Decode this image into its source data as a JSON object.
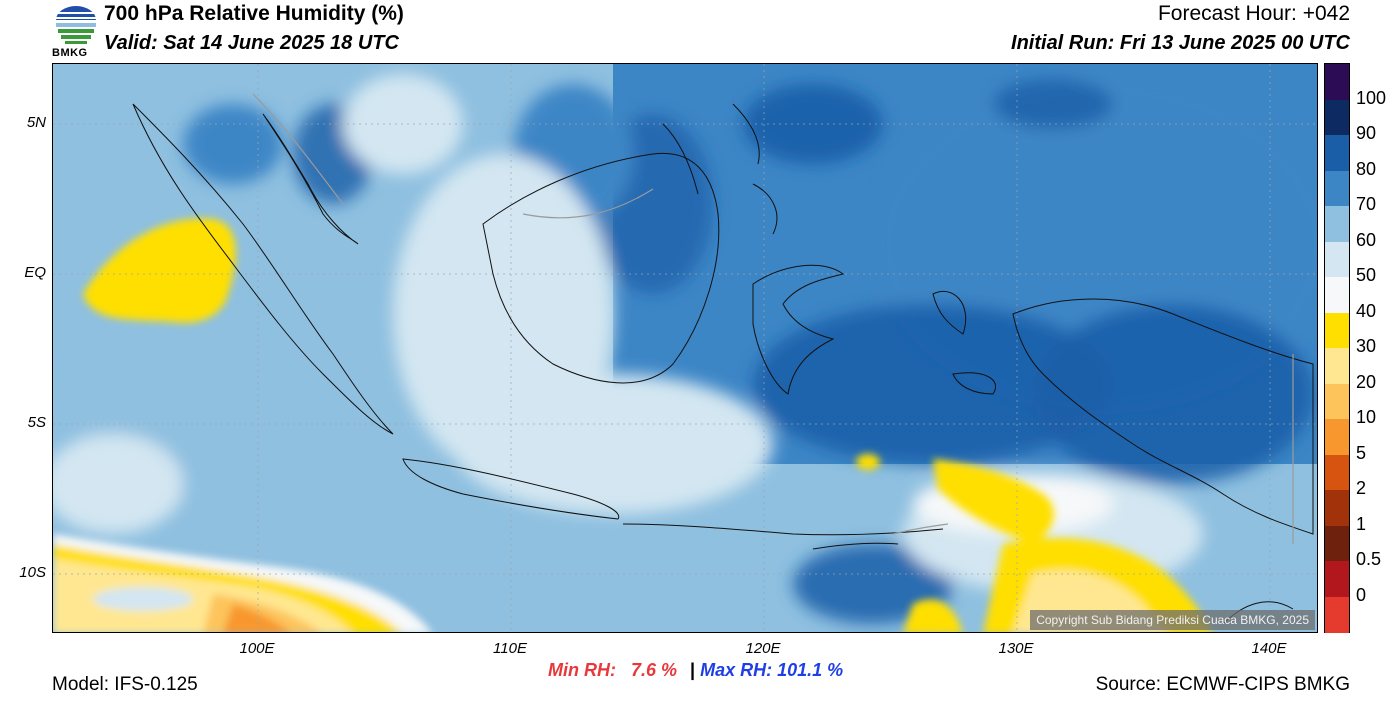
{
  "header": {
    "title": "700 hPa Relative Humidity (%)",
    "valid": "Valid: Sat 14 June 2025 18 UTC",
    "forecast_hour": "Forecast Hour: +042",
    "initial_run": "Initial Run: Fri 13 June 2025 00 UTC"
  },
  "logo": {
    "text": "BMKG",
    "icon": "bmkg-logo"
  },
  "map": {
    "lat_labels": [
      "5N",
      "EQ",
      "5S",
      "10S"
    ],
    "lon_labels": [
      "100E",
      "110E",
      "120E",
      "130E",
      "140E"
    ],
    "copyright": "Copyright Sub Bidang Prediksi Cuaca BMKG, 2025"
  },
  "colorbar": {
    "labels": [
      "100",
      "90",
      "80",
      "70",
      "60",
      "50",
      "40",
      "30",
      "20",
      "10",
      "5",
      "2",
      "1",
      "0.5",
      "0"
    ],
    "colors": [
      "#2b0c55",
      "#0d2a63",
      "#1a5ea8",
      "#3d86c6",
      "#8fc0e0",
      "#d3e6f1",
      "#f6f8f9",
      "#ffdf00",
      "#ffe791",
      "#fdc45c",
      "#f8972e",
      "#d65410",
      "#a23209",
      "#6e220d",
      "#b2171d",
      "#e53b2f"
    ]
  },
  "footer": {
    "model": "Model: IFS-0.125",
    "min_rh_label": "Min RH:",
    "min_rh_value": "7.6 %",
    "separator": "|",
    "max_rh_label": "Max RH:",
    "max_rh_value": "101.1 %",
    "source": "Source: ECMWF-CIPS BMKG"
  }
}
